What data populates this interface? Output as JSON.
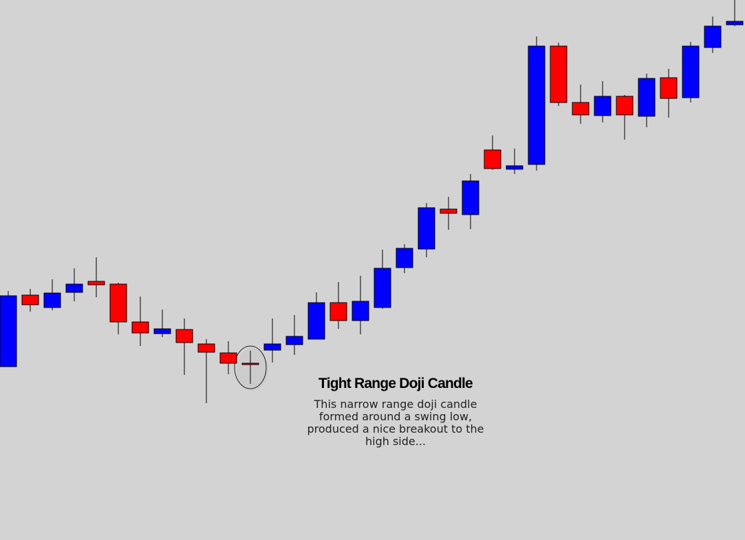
{
  "chart_data": {
    "type": "candlestick",
    "up_color": "#0000ff",
    "down_color": "#ff0000",
    "ylim": [
      0,
      785
    ],
    "open": [
      252,
      356,
      338,
      360,
      376,
      372,
      317,
      300,
      306,
      285,
      272,
      257,
      276,
      284,
      292,
      345,
      319,
      338,
      396,
      423,
      481,
      473,
      567,
      539,
      546,
      718,
      636,
      617,
      645,
      616,
      672,
      643,
      716,
      749
    ],
    "close": [
      355,
      342,
      359,
      372,
      371,
      317,
      301,
      307,
      287,
      273,
      257,
      255,
      285,
      296,
      345,
      319,
      347,
      395,
      424,
      483,
      475,
      522,
      540,
      544,
      718,
      636,
      618,
      645,
      618,
      671,
      642,
      718,
      747,
      754
    ],
    "high": [
      362,
      365,
      379,
      395,
      411,
      374,
      354,
      335,
      322,
      292,
      289,
      275,
      322,
      327,
      360,
      375,
      384,
      422,
      430,
      490,
      499,
      532,
      588,
      569,
      732,
      723,
      662,
      667,
      647,
      678,
      685,
      724,
      761,
      785
    ],
    "low": [
      252,
      332,
      334,
      347,
      353,
      299,
      282,
      295,
      240,
      199,
      241,
      227,
      258,
      269,
      292,
      307,
      299,
      336,
      388,
      411,
      451,
      452,
      538,
      532,
      537,
      631,
      605,
      607,
      582,
      600,
      614,
      636,
      708,
      747
    ],
    "annotation": {
      "title": "Tight Range Doji Candle",
      "lines": [
        "This narrow range doji candle",
        "formed around a swing low,",
        "produced a nice breakout to the",
        "high side..."
      ]
    }
  }
}
